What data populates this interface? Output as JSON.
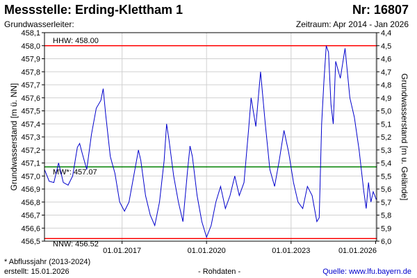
{
  "header": {
    "title": "Messstelle: Erding-Klettham 1",
    "number": "Nr: 16807",
    "aquifer_label": "Grundwasserleiter:",
    "period": "Zeitraum: Apr 2014 - Jan 2026"
  },
  "footer": {
    "note": "* Abflussjahr (2013-2024)",
    "created": "erstellt:  15.01.2026",
    "raw": "- Rohdaten -",
    "source": "Quelle: www.lfu.bayern.de"
  },
  "colors": {
    "series": "#0000cc",
    "max_line": "#ff0000",
    "min_line": "#ff0000",
    "mean_line": "#008000"
  },
  "chart_data": {
    "type": "line",
    "title": "",
    "ylabel": "Grundwasserstand [m ü. NN]",
    "y2label": "Grundwasserstand [m u. Gelände]",
    "ylim": [
      456.5,
      458.1
    ],
    "y2lim": [
      6.0,
      4.4
    ],
    "yticks": [
      "458,1",
      "458,0",
      "457,9",
      "457,8",
      "457,7",
      "457,6",
      "457,5",
      "457,4",
      "457,3",
      "457,2",
      "457,1",
      "457,0",
      "456,9",
      "456,8",
      "456,7",
      "456,6",
      "456,5"
    ],
    "y2ticks": [
      "4,4",
      "4,5",
      "4,6",
      "4,7",
      "4,8",
      "4,9",
      "5,0",
      "5,1",
      "5,2",
      "5,3",
      "5,4",
      "5,5",
      "5,6",
      "5,7",
      "5,8",
      "5,9",
      "6,0"
    ],
    "xlim": [
      "2014-04-01",
      "2026-01-15"
    ],
    "xticks": [
      {
        "date": "2017-01-01",
        "label": "01.01.2017"
      },
      {
        "date": "2020-01-01",
        "label": "01.01.2020"
      },
      {
        "date": "2023-01-01",
        "label": "01.01.2023"
      },
      {
        "date": "2026-01-01",
        "label": "01.01.2026"
      }
    ],
    "grid": true,
    "reference_lines": [
      {
        "label": "HHW: 458.00",
        "value": 458.0,
        "color": "#ff0000"
      },
      {
        "label": "MW*: 457.07",
        "value": 457.07,
        "color": "#008000"
      },
      {
        "label": "NNW: 456.52",
        "value": 456.52,
        "color": "#ff0000"
      }
    ],
    "series": [
      {
        "color": "#0000cc",
        "points": [
          [
            "2014-04-01",
            457.05
          ],
          [
            "2014-06-01",
            456.96
          ],
          [
            "2014-08-01",
            456.95
          ],
          [
            "2014-10-01",
            457.1
          ],
          [
            "2014-12-01",
            456.95
          ],
          [
            "2015-02-01",
            456.93
          ],
          [
            "2015-04-01",
            457.0
          ],
          [
            "2015-06-01",
            457.22
          ],
          [
            "2015-07-01",
            457.25
          ],
          [
            "2015-08-01",
            457.18
          ],
          [
            "2015-10-01",
            457.05
          ],
          [
            "2015-12-01",
            457.32
          ],
          [
            "2016-02-01",
            457.52
          ],
          [
            "2016-04-01",
            457.58
          ],
          [
            "2016-05-01",
            457.67
          ],
          [
            "2016-06-01",
            457.48
          ],
          [
            "2016-08-01",
            457.15
          ],
          [
            "2016-10-01",
            457.02
          ],
          [
            "2016-12-01",
            456.8
          ],
          [
            "2017-02-01",
            456.73
          ],
          [
            "2017-04-01",
            456.8
          ],
          [
            "2017-06-01",
            457.0
          ],
          [
            "2017-08-01",
            457.2
          ],
          [
            "2017-09-01",
            457.12
          ],
          [
            "2017-11-01",
            456.85
          ],
          [
            "2018-01-01",
            456.7
          ],
          [
            "2018-03-01",
            456.62
          ],
          [
            "2018-05-01",
            456.8
          ],
          [
            "2018-07-01",
            457.12
          ],
          [
            "2018-08-01",
            457.4
          ],
          [
            "2018-09-01",
            457.28
          ],
          [
            "2018-11-01",
            457.0
          ],
          [
            "2019-01-01",
            456.8
          ],
          [
            "2019-03-01",
            456.65
          ],
          [
            "2019-05-01",
            457.05
          ],
          [
            "2019-06-01",
            457.23
          ],
          [
            "2019-07-01",
            457.15
          ],
          [
            "2019-09-01",
            456.85
          ],
          [
            "2019-11-01",
            456.65
          ],
          [
            "2020-01-01",
            456.53
          ],
          [
            "2020-03-01",
            456.62
          ],
          [
            "2020-05-01",
            456.8
          ],
          [
            "2020-07-01",
            456.92
          ],
          [
            "2020-09-01",
            456.75
          ],
          [
            "2020-11-01",
            456.85
          ],
          [
            "2021-01-01",
            457.0
          ],
          [
            "2021-03-01",
            456.85
          ],
          [
            "2021-05-01",
            456.95
          ],
          [
            "2021-07-01",
            457.37
          ],
          [
            "2021-08-01",
            457.6
          ],
          [
            "2021-10-01",
            457.38
          ],
          [
            "2021-12-01",
            457.8
          ],
          [
            "2022-02-01",
            457.4
          ],
          [
            "2022-04-01",
            457.05
          ],
          [
            "2022-06-01",
            456.92
          ],
          [
            "2022-08-01",
            457.12
          ],
          [
            "2022-10-01",
            457.35
          ],
          [
            "2022-12-01",
            457.18
          ],
          [
            "2023-02-01",
            456.95
          ],
          [
            "2023-04-01",
            456.8
          ],
          [
            "2023-06-01",
            456.75
          ],
          [
            "2023-08-01",
            456.92
          ],
          [
            "2023-10-01",
            456.85
          ],
          [
            "2023-12-01",
            456.65
          ],
          [
            "2024-01-01",
            456.68
          ],
          [
            "2024-02-01",
            457.4
          ],
          [
            "2024-03-01",
            457.72
          ],
          [
            "2024-04-01",
            458.0
          ],
          [
            "2024-05-01",
            457.95
          ],
          [
            "2024-06-01",
            457.55
          ],
          [
            "2024-07-01",
            457.4
          ],
          [
            "2024-08-01",
            457.88
          ],
          [
            "2024-10-01",
            457.75
          ],
          [
            "2024-12-01",
            457.98
          ],
          [
            "2025-02-01",
            457.6
          ],
          [
            "2025-04-01",
            457.45
          ],
          [
            "2025-06-01",
            457.2
          ],
          [
            "2025-08-01",
            456.88
          ],
          [
            "2025-09-01",
            456.75
          ],
          [
            "2025-10-01",
            456.95
          ],
          [
            "2025-11-01",
            456.8
          ],
          [
            "2025-12-01",
            456.88
          ],
          [
            "2026-01-10",
            456.82
          ]
        ]
      }
    ]
  }
}
